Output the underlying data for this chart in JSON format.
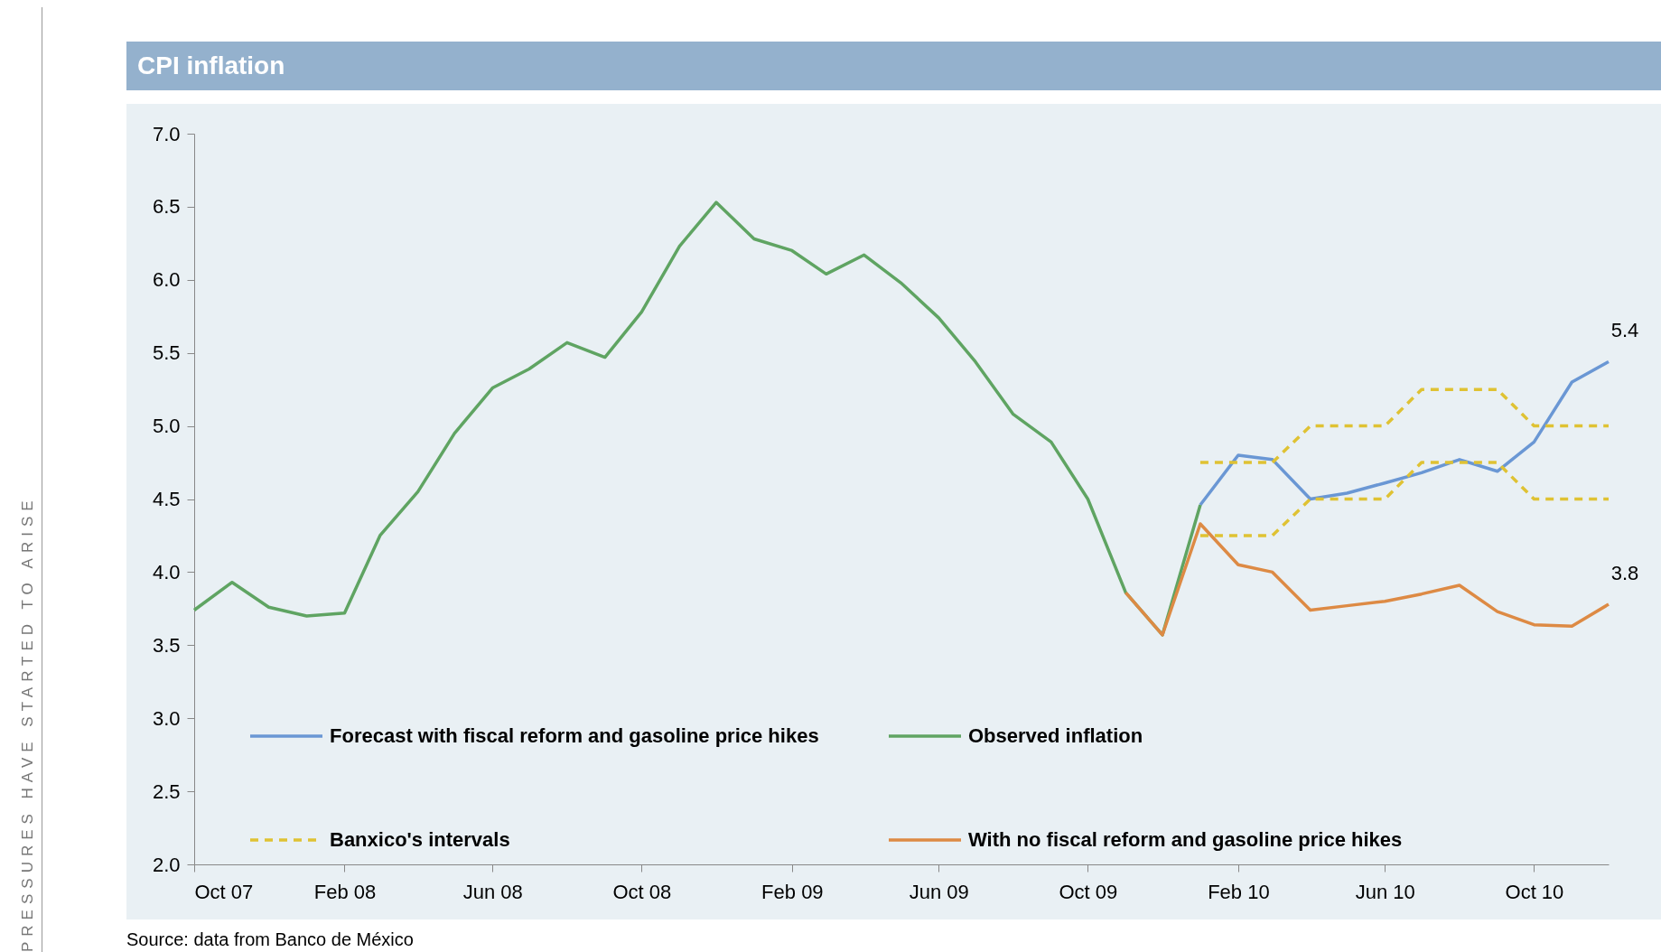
{
  "chart_data": {
    "type": "line",
    "title": "CPI inflation",
    "xlim": [
      "2007-10",
      "2010-12"
    ],
    "xticks": [
      {
        "value": "2007-10",
        "label": "Oct 07"
      },
      {
        "value": "2008-02",
        "label": "Feb 08"
      },
      {
        "value": "2008-06",
        "label": "Jun 08"
      },
      {
        "value": "2008-10",
        "label": "Oct 08"
      },
      {
        "value": "2009-02",
        "label": "Feb 09"
      },
      {
        "value": "2009-06",
        "label": "Jun 09"
      },
      {
        "value": "2009-10",
        "label": "Oct 09"
      },
      {
        "value": "2010-02",
        "label": "Feb 10"
      },
      {
        "value": "2010-06",
        "label": "Jun 10"
      },
      {
        "value": "2010-10",
        "label": "Oct 10"
      }
    ],
    "ylim": [
      2.0,
      7.0
    ],
    "yticks": [
      {
        "value": 2,
        "label": "2.0"
      },
      {
        "value": 2.5,
        "label": "2.5"
      },
      {
        "value": 3,
        "label": "3.0"
      },
      {
        "value": 3.5,
        "label": "3.5"
      },
      {
        "value": 4,
        "label": "4.0"
      },
      {
        "value": 4.5,
        "label": "4.5"
      },
      {
        "value": 5,
        "label": "5.0"
      },
      {
        "value": 5.5,
        "label": "5.5"
      },
      {
        "value": 6,
        "label": "6.0"
      },
      {
        "value": 6.5,
        "label": "6.5"
      },
      {
        "value": 7,
        "label": "7.0"
      }
    ],
    "legend": "bottom",
    "series": [
      {
        "name": "Forecast with fiscal reform and gasoline price hikes",
        "color": "#6a97d4",
        "x": [
          "2010-01",
          "2010-02",
          "2010-03",
          "2010-04",
          "2010-05",
          "2010-06",
          "2010-07",
          "2010-08",
          "2010-09",
          "2010-10",
          "2010-11",
          "2010-12"
        ],
        "values": [
          4.46,
          4.8,
          4.77,
          4.5,
          4.54,
          4.61,
          4.68,
          4.77,
          4.69,
          4.89,
          5.3,
          5.44
        ]
      },
      {
        "name": "Observed inflation",
        "color": "#5fa462",
        "x": [
          "2007-10",
          "2007-11",
          "2007-12",
          "2008-01",
          "2008-02",
          "2008-03",
          "2008-04",
          "2008-05",
          "2008-06",
          "2008-07",
          "2008-08",
          "2008-09",
          "2008-10",
          "2008-11",
          "2008-12",
          "2009-01",
          "2009-02",
          "2009-03",
          "2009-04",
          "2009-05",
          "2009-06",
          "2009-07",
          "2009-08",
          "2009-09",
          "2009-10",
          "2009-11",
          "2009-12",
          "2010-01"
        ],
        "values": [
          3.74,
          3.93,
          3.76,
          3.7,
          3.72,
          4.25,
          4.55,
          4.95,
          5.26,
          5.39,
          5.57,
          5.47,
          5.78,
          6.23,
          6.53,
          6.28,
          6.2,
          6.04,
          6.17,
          5.98,
          5.74,
          5.44,
          5.08,
          4.89,
          4.5,
          3.86,
          3.57,
          4.46
        ]
      },
      {
        "name": "Banxico's intervals",
        "color": "#dfc233",
        "line_style": "dashed",
        "x": [
          "2010-01",
          "2010-02",
          "2010-03",
          "2010-04",
          "2010-05",
          "2010-06",
          "2010-07",
          "2010-08",
          "2010-09",
          "2010-10",
          "2010-11",
          "2010-12"
        ],
        "values": [
          4.75,
          4.75,
          4.75,
          5.0,
          5.0,
          5.0,
          5.25,
          5.25,
          5.25,
          5.0,
          5.0,
          5.0
        ]
      },
      {
        "color": "#dfc233",
        "line_style": "dashed",
        "x": [
          "2010-01",
          "2010-02",
          "2010-03",
          "2010-04",
          "2010-05",
          "2010-06",
          "2010-07",
          "2010-08",
          "2010-09",
          "2010-10",
          "2010-11",
          "2010-12"
        ],
        "values": [
          4.25,
          4.25,
          4.25,
          4.5,
          4.5,
          4.5,
          4.75,
          4.75,
          4.75,
          4.5,
          4.5,
          4.5
        ]
      },
      {
        "name": "With no fiscal reform and gasoline price hikes",
        "color": "#dd8a44",
        "x": [
          "2009-11",
          "2009-12",
          "2010-01",
          "2010-02",
          "2010-03",
          "2010-04",
          "2010-05",
          "2010-06",
          "2010-07",
          "2010-08",
          "2010-09",
          "2010-10",
          "2010-11",
          "2010-12"
        ],
        "values": [
          3.86,
          3.57,
          4.33,
          4.05,
          4.0,
          3.74,
          3.77,
          3.8,
          3.85,
          3.91,
          3.73,
          3.64,
          3.63,
          3.78
        ]
      }
    ],
    "annotations": [
      "Source: data from Banco de México",
      {
        "text": "5.4",
        "x": "2010-12",
        "y": 5.44
      },
      {
        "text": "3.8",
        "x": "2010-12",
        "y": 3.78
      },
      "PRESSURES HAVE STARTED TO ARISE"
    ]
  }
}
